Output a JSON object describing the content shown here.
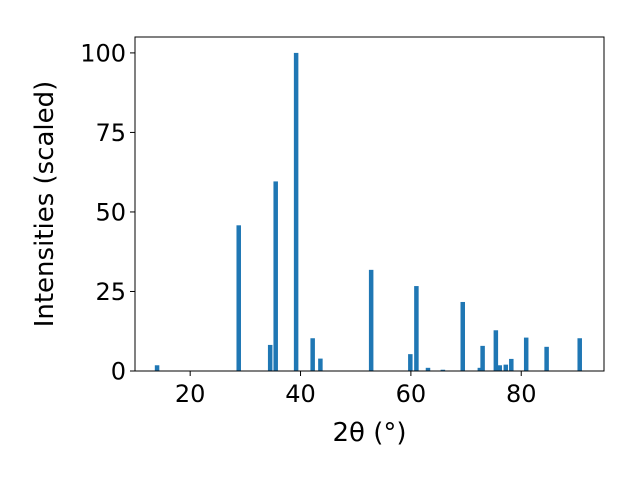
{
  "chart_data": {
    "type": "bar",
    "title": "",
    "xlabel": "2θ (°)",
    "ylabel": "Intensities (scaled)",
    "xlim": [
      10,
      95
    ],
    "ylim": [
      0,
      105
    ],
    "xticks": [
      20,
      40,
      60,
      80
    ],
    "yticks": [
      0,
      25,
      50,
      75,
      100
    ],
    "grid": false,
    "bar_color": "#1f77b4",
    "points": [
      {
        "x": 14.0,
        "y": 1.8
      },
      {
        "x": 28.8,
        "y": 45.8
      },
      {
        "x": 34.5,
        "y": 8.2
      },
      {
        "x": 35.5,
        "y": 59.6
      },
      {
        "x": 39.2,
        "y": 100
      },
      {
        "x": 42.2,
        "y": 10.3
      },
      {
        "x": 43.6,
        "y": 3.9
      },
      {
        "x": 52.8,
        "y": 31.8
      },
      {
        "x": 59.9,
        "y": 5.3
      },
      {
        "x": 61.0,
        "y": 26.7
      },
      {
        "x": 63.1,
        "y": 1.0
      },
      {
        "x": 65.8,
        "y": 0.4
      },
      {
        "x": 69.4,
        "y": 21.7
      },
      {
        "x": 72.5,
        "y": 1.0
      },
      {
        "x": 73.0,
        "y": 7.9
      },
      {
        "x": 75.4,
        "y": 12.8
      },
      {
        "x": 76.1,
        "y": 1.8
      },
      {
        "x": 77.2,
        "y": 2.0
      },
      {
        "x": 78.2,
        "y": 3.8
      },
      {
        "x": 80.9,
        "y": 10.5
      },
      {
        "x": 84.6,
        "y": 7.6
      },
      {
        "x": 90.6,
        "y": 10.3
      }
    ]
  }
}
